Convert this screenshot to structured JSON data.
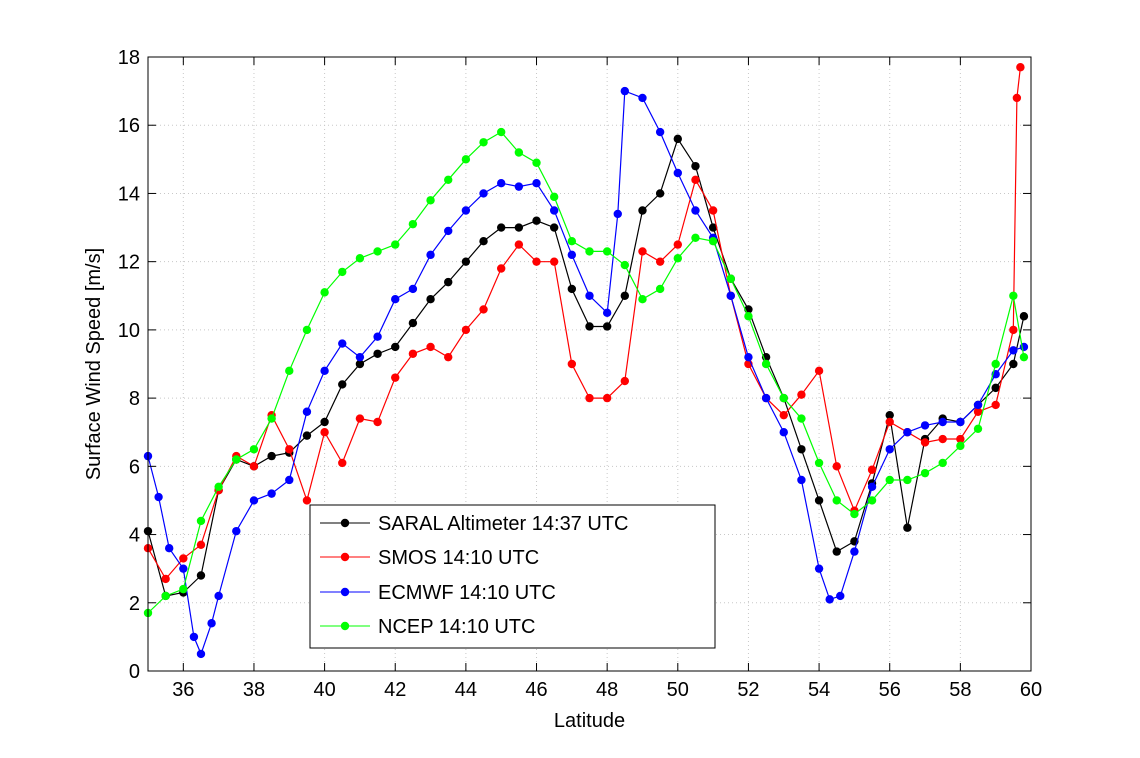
{
  "chart_data": {
    "type": "line",
    "title": "",
    "xlabel": "Latitude",
    "ylabel": "Surface Wind Speed [m/s]",
    "xlim": [
      35,
      60
    ],
    "ylim": [
      0,
      18
    ],
    "xticks": [
      36,
      38,
      40,
      42,
      44,
      46,
      48,
      50,
      52,
      54,
      56,
      58,
      60
    ],
    "yticks": [
      0,
      2,
      4,
      6,
      8,
      10,
      12,
      14,
      16,
      18
    ],
    "grid": true,
    "legend_position": "lower-left",
    "series": [
      {
        "name": "SARAL Altimeter 14:37 UTC",
        "color": "#000000",
        "x": [
          35.0,
          35.5,
          36.0,
          36.5,
          37.0,
          37.5,
          38.0,
          38.5,
          39.0,
          39.5,
          40.0,
          40.5,
          41.0,
          41.5,
          42.0,
          42.5,
          43.0,
          43.5,
          44.0,
          44.5,
          45.0,
          45.5,
          46.0,
          46.5,
          47.0,
          47.5,
          48.0,
          48.5,
          49.0,
          49.5,
          50.0,
          50.5,
          51.0,
          51.5,
          52.0,
          52.5,
          53.0,
          53.5,
          54.0,
          54.5,
          55.0,
          55.5,
          56.0,
          56.5,
          57.0,
          57.5,
          58.0,
          58.5,
          59.0,
          59.5,
          59.8
        ],
        "y": [
          4.1,
          2.2,
          2.3,
          2.8,
          5.3,
          6.2,
          6.0,
          6.3,
          6.4,
          6.9,
          7.3,
          8.4,
          9.0,
          9.3,
          9.5,
          10.2,
          10.9,
          11.4,
          12.0,
          12.6,
          13.0,
          13.0,
          13.2,
          13.0,
          11.2,
          10.1,
          10.1,
          11.0,
          13.5,
          14.0,
          15.6,
          14.8,
          13.0,
          11.5,
          10.6,
          9.2,
          8.0,
          6.5,
          5.0,
          3.5,
          3.8,
          5.5,
          7.5,
          4.2,
          6.8,
          7.4,
          7.3,
          7.8,
          8.3,
          9.0,
          10.4
        ]
      },
      {
        "name": "SMOS 14:10 UTC",
        "color": "#ff0000",
        "x": [
          35.0,
          35.5,
          36.0,
          36.5,
          37.0,
          37.5,
          38.0,
          38.5,
          39.0,
          39.5,
          40.0,
          40.5,
          41.0,
          41.5,
          42.0,
          42.5,
          43.0,
          43.5,
          44.0,
          44.5,
          45.0,
          45.5,
          46.0,
          46.5,
          47.0,
          47.5,
          48.0,
          48.5,
          49.0,
          49.5,
          50.0,
          50.5,
          51.0,
          51.5,
          52.0,
          52.5,
          53.0,
          53.5,
          54.0,
          54.5,
          55.0,
          55.5,
          56.0,
          56.5,
          57.0,
          57.5,
          58.0,
          58.5,
          59.0,
          59.5,
          59.6,
          59.7
        ],
        "y": [
          3.6,
          2.7,
          3.3,
          3.7,
          5.3,
          6.3,
          6.0,
          7.5,
          6.5,
          5.0,
          7.0,
          6.1,
          7.4,
          7.3,
          8.6,
          9.3,
          9.5,
          9.2,
          10.0,
          10.6,
          11.8,
          12.5,
          12.0,
          12.0,
          9.0,
          8.0,
          8.0,
          8.5,
          12.3,
          12.0,
          12.5,
          14.4,
          13.5,
          11.0,
          9.0,
          8.0,
          7.5,
          8.1,
          8.8,
          6.0,
          4.7,
          5.9,
          7.3,
          7.0,
          6.7,
          6.8,
          6.8,
          7.6,
          7.8,
          10.0,
          16.8,
          17.7
        ]
      },
      {
        "name": "ECMWF 14:10 UTC",
        "color": "#0000ff",
        "x": [
          35.0,
          35.3,
          35.6,
          36.0,
          36.3,
          36.5,
          36.8,
          37.0,
          37.5,
          38.0,
          38.5,
          39.0,
          39.5,
          40.0,
          40.5,
          41.0,
          41.5,
          42.0,
          42.5,
          43.0,
          43.5,
          44.0,
          44.5,
          45.0,
          45.5,
          46.0,
          46.5,
          47.0,
          47.5,
          48.0,
          48.3,
          48.5,
          49.0,
          49.5,
          50.0,
          50.5,
          51.0,
          51.5,
          52.0,
          52.5,
          53.0,
          53.5,
          54.0,
          54.3,
          54.6,
          55.0,
          55.5,
          56.0,
          56.5,
          57.0,
          57.5,
          58.0,
          58.5,
          59.0,
          59.5,
          59.8
        ],
        "y": [
          6.3,
          5.1,
          3.6,
          3.0,
          1.0,
          0.5,
          1.4,
          2.2,
          4.1,
          5.0,
          5.2,
          5.6,
          7.6,
          8.8,
          9.6,
          9.2,
          9.8,
          10.9,
          11.2,
          12.2,
          12.9,
          13.5,
          14.0,
          14.3,
          14.2,
          14.3,
          13.5,
          12.2,
          11.0,
          10.5,
          13.4,
          17.0,
          16.8,
          15.8,
          14.6,
          13.5,
          12.7,
          11.0,
          9.2,
          8.0,
          7.0,
          5.6,
          3.0,
          2.1,
          2.2,
          3.5,
          5.4,
          6.5,
          7.0,
          7.2,
          7.3,
          7.3,
          7.8,
          8.7,
          9.4,
          9.5
        ]
      },
      {
        "name": "NCEP 14:10 UTC",
        "color": "#00ff00",
        "x": [
          35.0,
          35.5,
          36.0,
          36.5,
          37.0,
          37.5,
          38.0,
          38.5,
          39.0,
          39.5,
          40.0,
          40.5,
          41.0,
          41.5,
          42.0,
          42.5,
          43.0,
          43.5,
          44.0,
          44.5,
          45.0,
          45.5,
          46.0,
          46.5,
          47.0,
          47.5,
          48.0,
          48.5,
          49.0,
          49.5,
          50.0,
          50.5,
          51.0,
          51.5,
          52.0,
          52.5,
          53.0,
          53.5,
          54.0,
          54.5,
          55.0,
          55.5,
          56.0,
          56.5,
          57.0,
          57.5,
          58.0,
          58.5,
          59.0,
          59.5,
          59.8
        ],
        "y": [
          1.7,
          2.2,
          2.4,
          4.4,
          5.4,
          6.2,
          6.5,
          7.4,
          8.8,
          10.0,
          11.1,
          11.7,
          12.1,
          12.3,
          12.5,
          13.1,
          13.8,
          14.4,
          15.0,
          15.5,
          15.8,
          15.2,
          14.9,
          13.9,
          12.6,
          12.3,
          12.3,
          11.9,
          10.9,
          11.2,
          12.1,
          12.7,
          12.6,
          11.5,
          10.4,
          9.0,
          8.0,
          7.4,
          6.1,
          5.0,
          4.6,
          5.0,
          5.6,
          5.6,
          5.8,
          6.1,
          6.6,
          7.1,
          9.0,
          11.0,
          9.2
        ]
      }
    ]
  }
}
